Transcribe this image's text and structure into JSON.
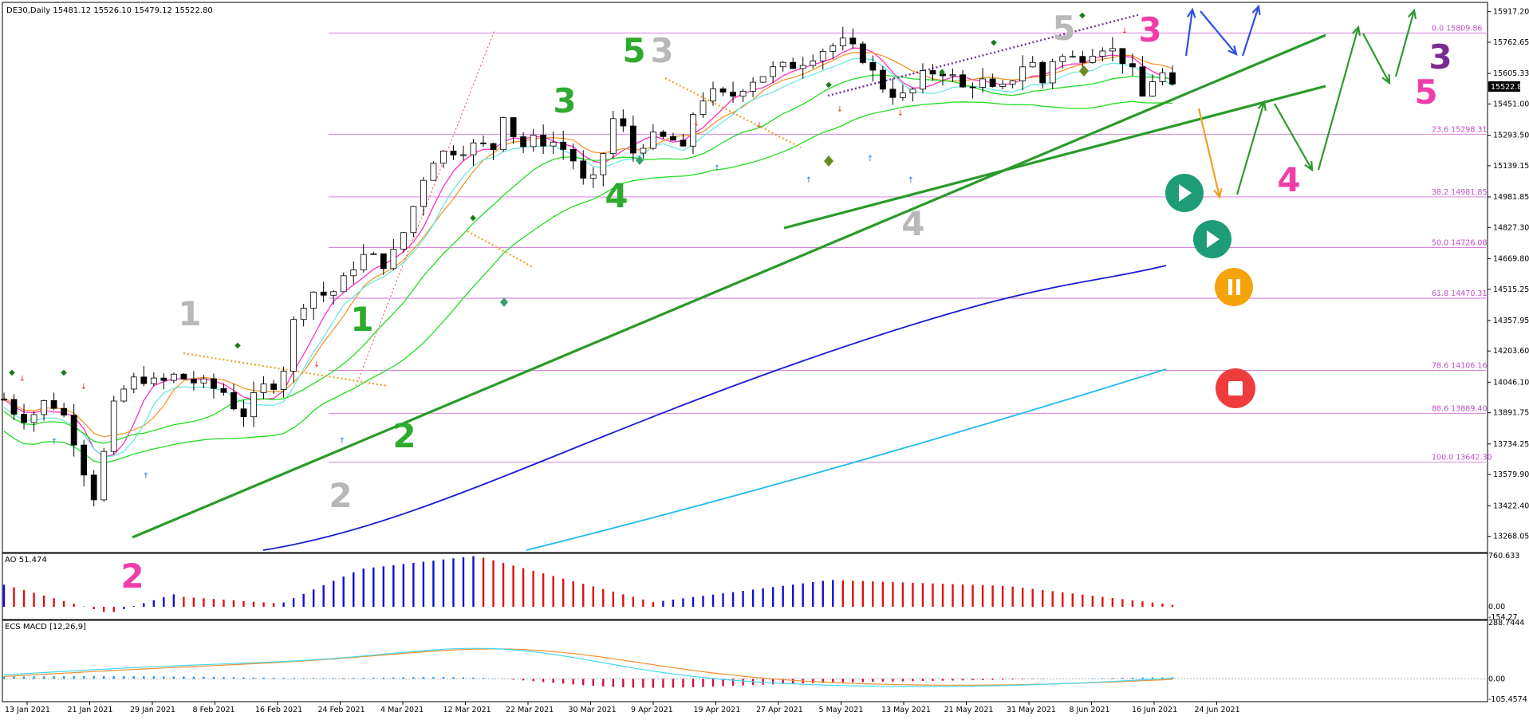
{
  "chart_data": [
    {
      "type": "candlestick",
      "title": "DE30,Daily  15481.12 15526.10 15479.12 15522.80",
      "current_price": "15522.80",
      "y_axis_ticks": [
        "15917.20",
        "15762.65",
        "15605.33",
        "15451.00",
        "15293.50",
        "15139.15",
        "14981.85",
        "14827.30",
        "14669.80",
        "14515.25",
        "14357.95",
        "14203.60",
        "14046.10",
        "13891.75",
        "13734.25",
        "13579.90",
        "13422.40",
        "13268.05"
      ],
      "y_range": [
        13190,
        15960
      ],
      "fib_levels": [
        {
          "label": "0.0 15809.86",
          "value": 15809.86
        },
        {
          "label": "23.6 15298.31",
          "value": 15298.31
        },
        {
          "label": "38.2 14981.85",
          "value": 14981.85
        },
        {
          "label": "50.0 14726.08",
          "value": 14726.08
        },
        {
          "label": "61.8 14470.31",
          "value": 14470.31
        },
        {
          "label": "78.6 14106.16",
          "value": 14106.16
        },
        {
          "label": "88.6 13889.40",
          "value": 13889.4
        },
        {
          "label": "100.0 13642.30",
          "value": 13642.3
        }
      ],
      "x_labels": [
        "13 Jan 2021",
        "21 Jan 2021",
        "29 Jan 2021",
        "8 Feb 2021",
        "16 Feb 2021",
        "24 Feb 2021",
        "4 Mar 2021",
        "12 Mar 2021",
        "22 Mar 2021",
        "30 Mar 2021",
        "9 Apr 2021",
        "19 Apr 2021",
        "27 Apr 2021",
        "5 May 2021",
        "13 May 2021",
        "21 May 2021",
        "31 May 2021",
        "8 Jun 2021",
        "16 Jun 2021",
        "24 Jun 2021"
      ],
      "wave_labels": [
        {
          "text": "1",
          "color": "#b8b8b8"
        },
        {
          "text": "2",
          "color": "#b8b8b8"
        },
        {
          "text": "3",
          "color": "#b8b8b8"
        },
        {
          "text": "4",
          "color": "#b8b8b8"
        },
        {
          "text": "5",
          "color": "#b8b8b8"
        },
        {
          "text": "1",
          "color": "#2eaa2e"
        },
        {
          "text": "2",
          "color": "#2eaa2e"
        },
        {
          "text": "3",
          "color": "#2eaa2e"
        },
        {
          "text": "4",
          "color": "#2eaa2e"
        },
        {
          "text": "5",
          "color": "#2eaa2e"
        },
        {
          "text": "2",
          "color": "#f03ea8"
        },
        {
          "text": "3",
          "color": "#f03ea8"
        },
        {
          "text": "4",
          "color": "#f03ea8"
        },
        {
          "text": "5",
          "color": "#f03ea8"
        },
        {
          "text": "3",
          "color": "#7a2a90"
        }
      ]
    },
    {
      "type": "bar",
      "title": "AO 51.474",
      "y_axis_ticks": [
        "760.633",
        "0.00",
        "-154.27"
      ],
      "y_range": [
        -154.27,
        760.633
      ],
      "colors": {
        "up": "#1010d0",
        "down": "#e01010"
      }
    },
    {
      "type": "line",
      "title": "ECS MACD [12,26,9]",
      "y_axis_ticks": [
        "288.7444",
        "0.00",
        "-105.4574"
      ],
      "y_range": [
        -105.4574,
        288.7444
      ],
      "series_colors": {
        "macd": "#40d8f0",
        "signal": "#f09030",
        "hist_up": "#2090e0",
        "hist_down": "#d01040"
      }
    }
  ],
  "buttons": {
    "play1": {
      "icon": "play-icon",
      "color": "#1e9c78"
    },
    "play2": {
      "icon": "play-icon",
      "color": "#1e9c78"
    },
    "pause": {
      "icon": "pause-icon",
      "color": "#f5a30a"
    },
    "stop": {
      "icon": "stop-icon",
      "color": "#ee3c3c"
    }
  }
}
